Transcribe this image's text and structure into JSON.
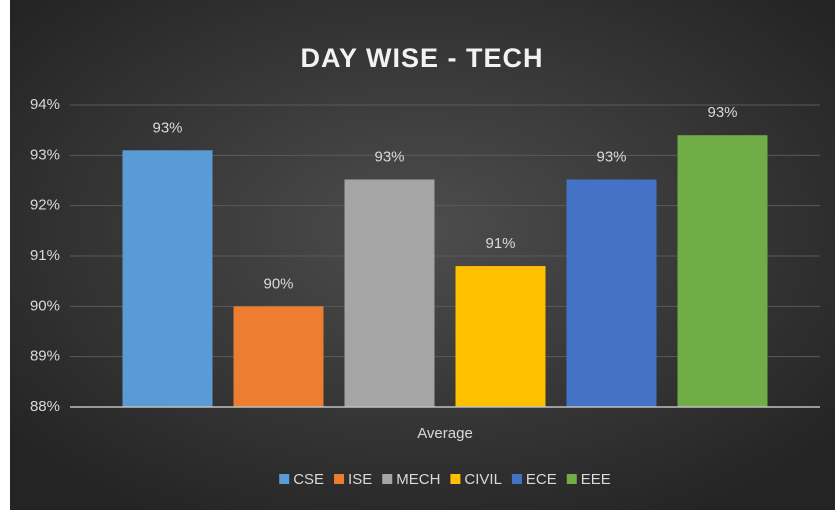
{
  "chart_data": {
    "type": "bar",
    "title": "DAY WISE - TECH",
    "categories": [
      "Average"
    ],
    "series": [
      {
        "name": "CSE",
        "color": "#5b9bd5",
        "values": [
          93.1
        ],
        "value_labels": [
          "93%"
        ]
      },
      {
        "name": "ISE",
        "color": "#ed7d31",
        "values": [
          90.0
        ],
        "value_labels": [
          "90%"
        ]
      },
      {
        "name": "MECH",
        "color": "#a5a5a5",
        "values": [
          92.52
        ],
        "value_labels": [
          "93%"
        ]
      },
      {
        "name": "CIVIL",
        "color": "#ffc000",
        "values": [
          90.8
        ],
        "value_labels": [
          "91%"
        ]
      },
      {
        "name": "ECE",
        "color": "#4472c4",
        "values": [
          92.52
        ],
        "value_labels": [
          "93%"
        ]
      },
      {
        "name": "EEE",
        "color": "#70ad47",
        "values": [
          93.4
        ],
        "value_labels": [
          "93%"
        ]
      }
    ],
    "ylim": [
      88,
      94
    ],
    "yticks": [
      {
        "value": 88,
        "label": "88%"
      },
      {
        "value": 89,
        "label": "89%"
      },
      {
        "value": 90,
        "label": "90%"
      },
      {
        "value": 91,
        "label": "91%"
      },
      {
        "value": 92,
        "label": "92%"
      },
      {
        "value": 93,
        "label": "93%"
      },
      {
        "value": 94,
        "label": "94%"
      }
    ],
    "grid": true,
    "legend": "bottom"
  }
}
